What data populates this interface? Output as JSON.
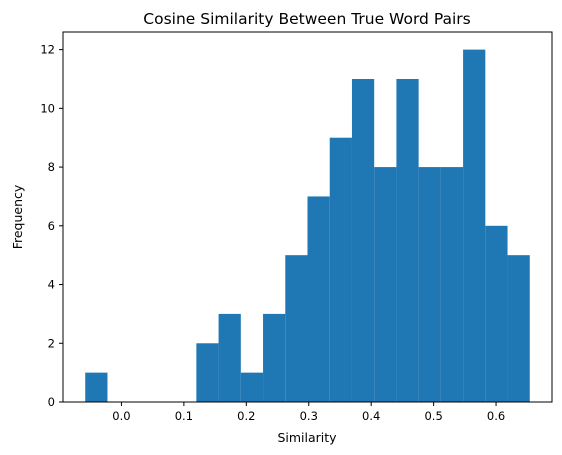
{
  "chart_data": {
    "type": "bar",
    "title": "Cosine Similarity Between True Word Pairs",
    "xlabel": "Similarity",
    "ylabel": "Frequency",
    "bin_edges": [
      -0.058,
      -0.0224,
      0.0132,
      0.0488,
      0.0844,
      0.12,
      0.1556,
      0.1912,
      0.2268,
      0.2624,
      0.298,
      0.3336,
      0.3692,
      0.4048,
      0.4404,
      0.476,
      0.5116,
      0.5472,
      0.5828,
      0.6184,
      0.654
    ],
    "values": [
      1,
      0,
      0,
      0,
      0,
      2,
      3,
      1,
      3,
      5,
      7,
      9,
      11,
      8,
      11,
      8,
      8,
      12,
      6,
      5
    ],
    "xlim": [
      -0.0936,
      0.6896
    ],
    "ylim": [
      0,
      12.6
    ],
    "xticks": [
      0.0,
      0.1,
      0.2,
      0.3,
      0.4,
      0.5,
      0.6
    ],
    "xtick_labels": [
      "0.0",
      "0.1",
      "0.2",
      "0.3",
      "0.4",
      "0.5",
      "0.6"
    ],
    "yticks": [
      0,
      2,
      4,
      6,
      8,
      10,
      12
    ],
    "ytick_labels": [
      "0",
      "2",
      "4",
      "6",
      "8",
      "10",
      "12"
    ],
    "color": "#1f77b4",
    "grid": false
  }
}
